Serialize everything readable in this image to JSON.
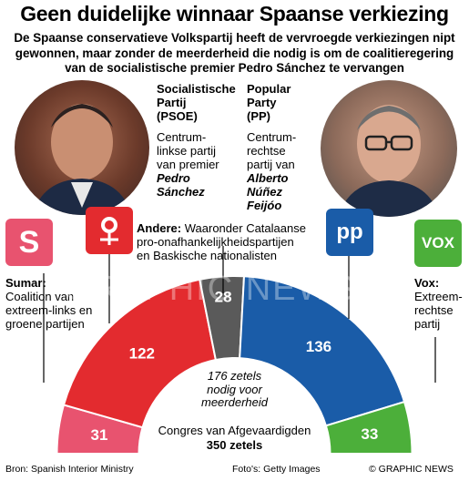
{
  "header": {
    "title": "Geen duidelijke winnaar Spaanse verkiezing",
    "subtitle_lines": [
      "De Spaanse conservatieve Volkspartij heeft de vervroegde verkiezingen nipt",
      "gewonnen, maar zonder de meerderheid die nodig is om de coalitieregering",
      "van de socialistische premier Pedro Sánchez te vervangen"
    ]
  },
  "parties": {
    "psoe": {
      "name_lines": [
        "Socialistische",
        "Partij",
        "(PSOE)"
      ],
      "desc_lines": [
        "Centrum-",
        "linkse partij",
        "van premier"
      ],
      "leader_lines": [
        "Pedro",
        "Sánchez"
      ]
    },
    "pp": {
      "name_lines": [
        "Popular",
        "Party",
        "(PP)"
      ],
      "desc_lines": [
        "Centrum-",
        "rechtse",
        "partij van"
      ],
      "leader_lines": [
        "Alberto",
        "Núñez",
        "Feijóo"
      ],
      "logo_text": "pp"
    },
    "sumar": {
      "name": "Sumar:",
      "desc_lines": [
        "Coalition van",
        "extreem-links en",
        "groene partijen"
      ],
      "logo_text": "S"
    },
    "vox": {
      "name": "Vox:",
      "desc_lines": [
        "Extreem-",
        "rechtse",
        "partij"
      ],
      "logo_text": "VOX"
    },
    "andere": {
      "name": "Andere:",
      "desc_line1": "Waaronder Catalaanse",
      "desc_line2": "pro-onafhankelijkheidspartijen",
      "desc_line3": "en Baskische nationalisten"
    }
  },
  "chart_data": {
    "type": "pie",
    "subtype": "parliament-hemicycle",
    "segments": [
      {
        "name": "Sumar",
        "value": 31,
        "color": "#e8536f"
      },
      {
        "name": "PSOE",
        "value": 122,
        "color": "#e32b2f"
      },
      {
        "name": "Andere",
        "value": 28,
        "color": "#5a5a5a"
      },
      {
        "name": "PP",
        "value": 136,
        "color": "#1a5ca8"
      },
      {
        "name": "Vox",
        "value": 33,
        "color": "#4caf3a"
      }
    ],
    "total": 350,
    "majority": 176,
    "majority_lines": [
      "176 zetels",
      "nodig voor",
      "meerderheid"
    ],
    "caption": "Congres van Afgevaardigden",
    "total_label": "350 zetels"
  },
  "footer": {
    "source": "Bron: Spanish Interior Ministry",
    "photos": "Foto's: Getty Images",
    "credit": "© GRAPHIC NEWS"
  },
  "watermark": "GRAPHIC NEWS",
  "colors": {
    "sumar": "#e8536f",
    "psoe": "#e32b2f",
    "andere": "#5a5a5a",
    "pp": "#1a5ca8",
    "vox": "#4caf3a"
  }
}
